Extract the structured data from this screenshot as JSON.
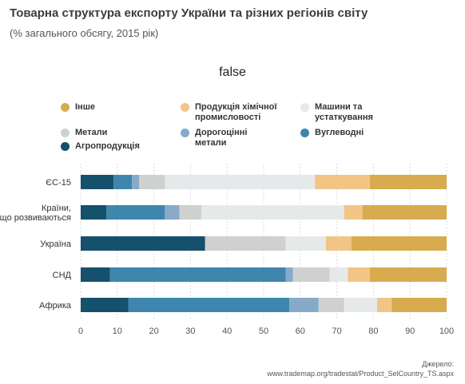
{
  "title": "Товарна структура експорту України та різних регіонів світу",
  "subtitle": "(% загального обсягу, 2015 рік)",
  "chart_heading": "false",
  "source_label": "Джерело:",
  "source_url": "www.trademap.org/tradestat/Product_SelCountry_TS.aspx",
  "legend": [
    {
      "name": "Інше",
      "color": "#d8ab4f"
    },
    {
      "name": "Продукція хімічної промисловості",
      "color": "#f0c586"
    },
    {
      "name": "Машини та устаткування",
      "color": "#e6e9ea"
    },
    {
      "name": "Метали",
      "color": "#cfd0d0"
    },
    {
      "name": "Дорогоцінні метали",
      "color": "#86aac8"
    },
    {
      "name": "Вуглеводні",
      "color": "#3e86ad"
    },
    {
      "name": "Агропродукція",
      "color": "#15506c"
    }
  ],
  "chart_data": {
    "type": "bar",
    "orientation": "horizontal",
    "stacked": true,
    "categories": [
      "ЄС-15",
      "Країни, що розвиваються",
      "Україна",
      "СНД",
      "Африка"
    ],
    "xlim": [
      0,
      100
    ],
    "x_ticks": [
      0,
      10,
      20,
      30,
      40,
      50,
      60,
      70,
      80,
      90,
      100
    ],
    "grid": true,
    "legend_position": "top",
    "series": [
      {
        "name": "Агропродукція",
        "values": [
          9,
          7,
          34,
          8,
          13
        ]
      },
      {
        "name": "Вуглеводні",
        "values": [
          5,
          16,
          0,
          48,
          44
        ]
      },
      {
        "name": "Дорогоцінні метали",
        "values": [
          2,
          4,
          0,
          2,
          8
        ]
      },
      {
        "name": "Метали",
        "values": [
          7,
          6,
          22,
          10,
          7
        ]
      },
      {
        "name": "Машини та устаткування",
        "values": [
          41,
          39,
          11,
          5,
          9
        ]
      },
      {
        "name": "Продукція хімічної промисловості",
        "values": [
          15,
          5,
          7,
          6,
          4
        ]
      },
      {
        "name": "Інше",
        "values": [
          21,
          23,
          26,
          21,
          15
        ]
      }
    ]
  }
}
